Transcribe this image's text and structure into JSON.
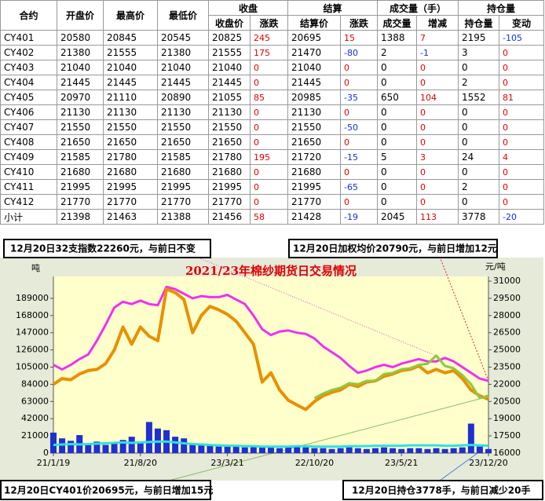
{
  "table": {
    "header_top": [
      "合约",
      "开盘价",
      "最高价",
      "最低价",
      "收盘",
      "结算",
      "成交量（手）",
      "持仓量"
    ],
    "header_sub": [
      "收盘价",
      "涨跌",
      "结算价",
      "涨跌",
      "成交量",
      "增减",
      "持仓量",
      "变动"
    ],
    "rows": [
      [
        "CY401",
        20580,
        20845,
        20545,
        20825,
        245,
        20695,
        15,
        1388,
        7,
        2195,
        -105
      ],
      [
        "CY402",
        21380,
        21555,
        21380,
        21555,
        175,
        21470,
        -80,
        2,
        -1,
        3,
        0
      ],
      [
        "CY403",
        21040,
        21040,
        21040,
        21040,
        0,
        21040,
        0,
        0,
        0,
        0,
        0
      ],
      [
        "CY404",
        21445,
        21445,
        21445,
        21445,
        0,
        21445,
        0,
        0,
        0,
        2,
        0
      ],
      [
        "CY405",
        20970,
        21110,
        20890,
        21055,
        85,
        20985,
        -35,
        650,
        104,
        1552,
        81
      ],
      [
        "CY406",
        21130,
        21130,
        21130,
        21130,
        0,
        21130,
        0,
        0,
        0,
        0,
        0
      ],
      [
        "CY407",
        21550,
        21550,
        21550,
        21550,
        0,
        21550,
        -50,
        0,
        0,
        0,
        0
      ],
      [
        "CY408",
        21650,
        21650,
        21650,
        21650,
        0,
        21650,
        0,
        0,
        0,
        0,
        0
      ],
      [
        "CY409",
        21585,
        21780,
        21585,
        21780,
        195,
        21720,
        -15,
        5,
        3,
        24,
        4
      ],
      [
        "CY410",
        21680,
        21680,
        21680,
        21680,
        0,
        21680,
        0,
        0,
        0,
        0,
        0
      ],
      [
        "CY411",
        21995,
        21995,
        21995,
        21995,
        0,
        21995,
        -65,
        0,
        0,
        2,
        0
      ],
      [
        "CY412",
        21770,
        21770,
        21770,
        21770,
        0,
        21770,
        0,
        0,
        0,
        0,
        0
      ],
      [
        "小计",
        21398,
        21463,
        21388,
        21456,
        58,
        21428,
        -19,
        2045,
        113,
        3778,
        -20
      ]
    ]
  },
  "chart_data": {
    "type": "line",
    "title": "2021/23年棉纱期货日交易情况",
    "y_label": "吨",
    "y2_label": "元/吨",
    "annotations": [
      "12月20日32支指数22260元，与前日不变",
      "12月20日加权均价20790元，与前日增加12元",
      "12月20日CY401价20695元，与前日增加15元",
      "12月20日持仓3778手，与前日减少20手"
    ],
    "categories": [
      "21/1/19",
      null,
      null,
      null,
      null,
      null,
      null,
      null,
      null,
      null,
      "21/8/20",
      null,
      null,
      null,
      null,
      null,
      null,
      null,
      null,
      null,
      "23/3/21",
      null,
      null,
      null,
      null,
      null,
      null,
      null,
      null,
      null,
      "22/10/20",
      null,
      null,
      null,
      null,
      null,
      null,
      null,
      null,
      null,
      "23/5/21",
      null,
      null,
      null,
      null,
      null,
      null,
      null,
      null,
      null,
      "23/12/20"
    ],
    "ylim": [
      0,
      210000
    ],
    "yticks": [
      0,
      21000,
      42000,
      63000,
      84000,
      105000,
      126000,
      147000,
      168000,
      189000
    ],
    "y2lim": [
      16000,
      31000
    ],
    "y2ticks": [
      16000,
      17500,
      19000,
      20500,
      22000,
      23500,
      25000,
      26500,
      28000,
      29500,
      31000
    ],
    "series": [
      {
        "type": "bar",
        "color": "#1f2fd0",
        "values": [
          25000,
          18000,
          15000,
          22000,
          12000,
          14000,
          10000,
          12000,
          16000,
          20000,
          14000,
          38000,
          30000,
          28000,
          20000,
          18000,
          12000,
          10000,
          9000,
          8000,
          8000,
          9000,
          7000,
          8000,
          9000,
          8000,
          6000,
          7000,
          8000,
          7000,
          6000,
          6000,
          5000,
          6000,
          7000,
          6000,
          5000,
          6000,
          7000,
          6000,
          5000,
          6000,
          6000,
          5000,
          6000,
          5000,
          6000,
          7000,
          36000,
          8000,
          5000
        ]
      },
      {
        "type": "line",
        "color": "#30e0e0",
        "values": [
          10000,
          10500,
          11000,
          10500,
          11000,
          11500,
          12000,
          12500,
          13000,
          12500,
          13000,
          13500,
          14000,
          14000,
          13000,
          12000,
          11000,
          10500,
          10000,
          9500,
          9000,
          9000,
          8500,
          8500,
          8000,
          8000,
          8000,
          8000,
          8500,
          8500,
          8000,
          8000,
          8000,
          8000,
          8500,
          8500,
          8500,
          9000,
          9000,
          9000,
          9000,
          9500,
          9500,
          9500,
          9500,
          9000,
          9000,
          9500,
          10000,
          9500,
          9000
        ]
      },
      {
        "type": "line",
        "axis": "y2",
        "color": "#f030f0",
        "values": [
          23700,
          23300,
          23700,
          24200,
          24600,
          25800,
          27200,
          28700,
          29200,
          29000,
          29300,
          29000,
          28900,
          30500,
          30300,
          29900,
          29500,
          29700,
          29600,
          29600,
          29800,
          29400,
          29000,
          28000,
          26800,
          26300,
          26600,
          26700,
          26500,
          26400,
          26000,
          25300,
          24800,
          24300,
          23600,
          23000,
          23200,
          23500,
          23700,
          23500,
          23800,
          24000,
          24200,
          24000,
          24000,
          24300,
          24000,
          23500,
          23000,
          22500,
          22300
        ]
      },
      {
        "type": "line",
        "axis": "y2",
        "color": "#e89000",
        "values": [
          22000,
          22500,
          22400,
          22900,
          23200,
          23300,
          23800,
          25000,
          27000,
          25500,
          27000,
          26200,
          25800,
          30300,
          30000,
          29400,
          26500,
          28000,
          28800,
          28500,
          28100,
          27500,
          26500,
          25500,
          22200,
          23000,
          21500,
          20600,
          20200,
          19800,
          20500,
          21000,
          21300,
          21500,
          22000,
          21800,
          22200,
          22300,
          22700,
          22900,
          23200,
          23300,
          23600,
          23000,
          23300,
          23000,
          23200,
          22500,
          21500,
          21000,
          20700
        ]
      },
      {
        "type": "line",
        "axis": "y2",
        "color": "#90c840",
        "values": [
          null,
          null,
          null,
          null,
          null,
          null,
          null,
          null,
          null,
          null,
          null,
          null,
          null,
          null,
          null,
          null,
          null,
          null,
          null,
          null,
          null,
          null,
          null,
          null,
          null,
          null,
          null,
          null,
          null,
          null,
          20800,
          21200,
          21500,
          21700,
          22100,
          22000,
          22300,
          22300,
          22900,
          23000,
          23300,
          23400,
          23700,
          23800,
          24500,
          23600,
          23400,
          22800,
          22000,
          20800,
          21000
        ]
      }
    ]
  }
}
